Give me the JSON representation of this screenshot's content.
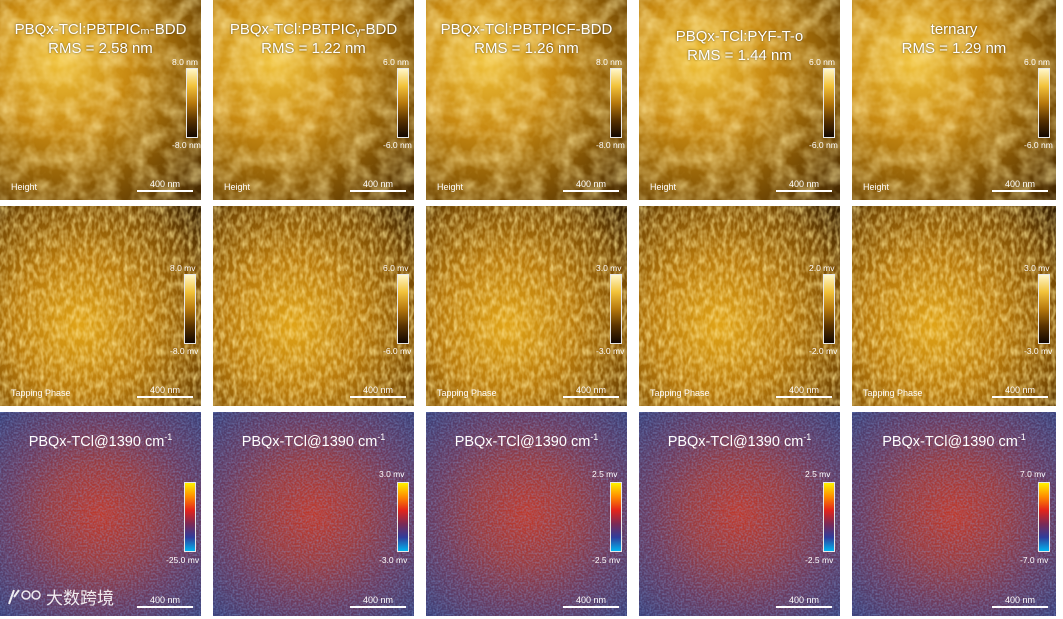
{
  "columns": [
    {
      "title_line1": "PBQx-TCl:PBTPICₘ-BDD",
      "title_line2": "RMS = 2.58 nm"
    },
    {
      "title_line1": "PBQx-TCl:PBTPICᵧ-BDD",
      "title_line2": "RMS = 1.22 nm"
    },
    {
      "title_line1": "PBQx-TCl:PBTPICF-BDD",
      "title_line2": "RMS = 1.26 nm"
    },
    {
      "title_line1": "PBQx-TCl:PYF-T-o",
      "title_line2": "RMS = 1.44 nm"
    },
    {
      "title_line1": "ternary",
      "title_line2": "RMS = 1.29 nm"
    }
  ],
  "height_row": {
    "label": "Height",
    "scalebar": "400 nm",
    "colorbars": [
      {
        "max": "8.0 nm",
        "min": "-8.0 nm"
      },
      {
        "max": "6.0 nm",
        "min": "-6.0 nm"
      },
      {
        "max": "8.0 nm",
        "min": "-8.0 nm"
      },
      {
        "max": "6.0 nm",
        "min": "-6.0 nm"
      },
      {
        "max": "6.0 nm",
        "min": "-6.0 nm"
      }
    ]
  },
  "phase_row": {
    "label": "Tapping Phase",
    "scalebar": "400 nm",
    "colorbars": [
      {
        "max": "8.0 mv",
        "min": "-8.0 mv"
      },
      {
        "max": "6.0 mv",
        "min": "-6.0 mv"
      },
      {
        "max": "3.0 mv",
        "min": "-3.0 mv"
      },
      {
        "max": "2.0 mv",
        "min": "-2.0 mv"
      },
      {
        "max": "3.0 mv",
        "min": "-3.0 mv"
      }
    ]
  },
  "ir_row": {
    "title": "PBQx-TCl@1390 cm",
    "title_sup": "-1",
    "scalebar": "400 nm",
    "colorbars": [
      {
        "max": "",
        "min": "-25.0 mv"
      },
      {
        "max": "3.0 mv",
        "min": "-3.0 mv"
      },
      {
        "max": "2.5 mv",
        "min": "-2.5 mv"
      },
      {
        "max": "2.5 mv",
        "min": "-2.5 mv"
      },
      {
        "max": "7.0 mv",
        "min": "-7.0 mv"
      }
    ]
  },
  "watermark": {
    "text": "大数跨境"
  }
}
